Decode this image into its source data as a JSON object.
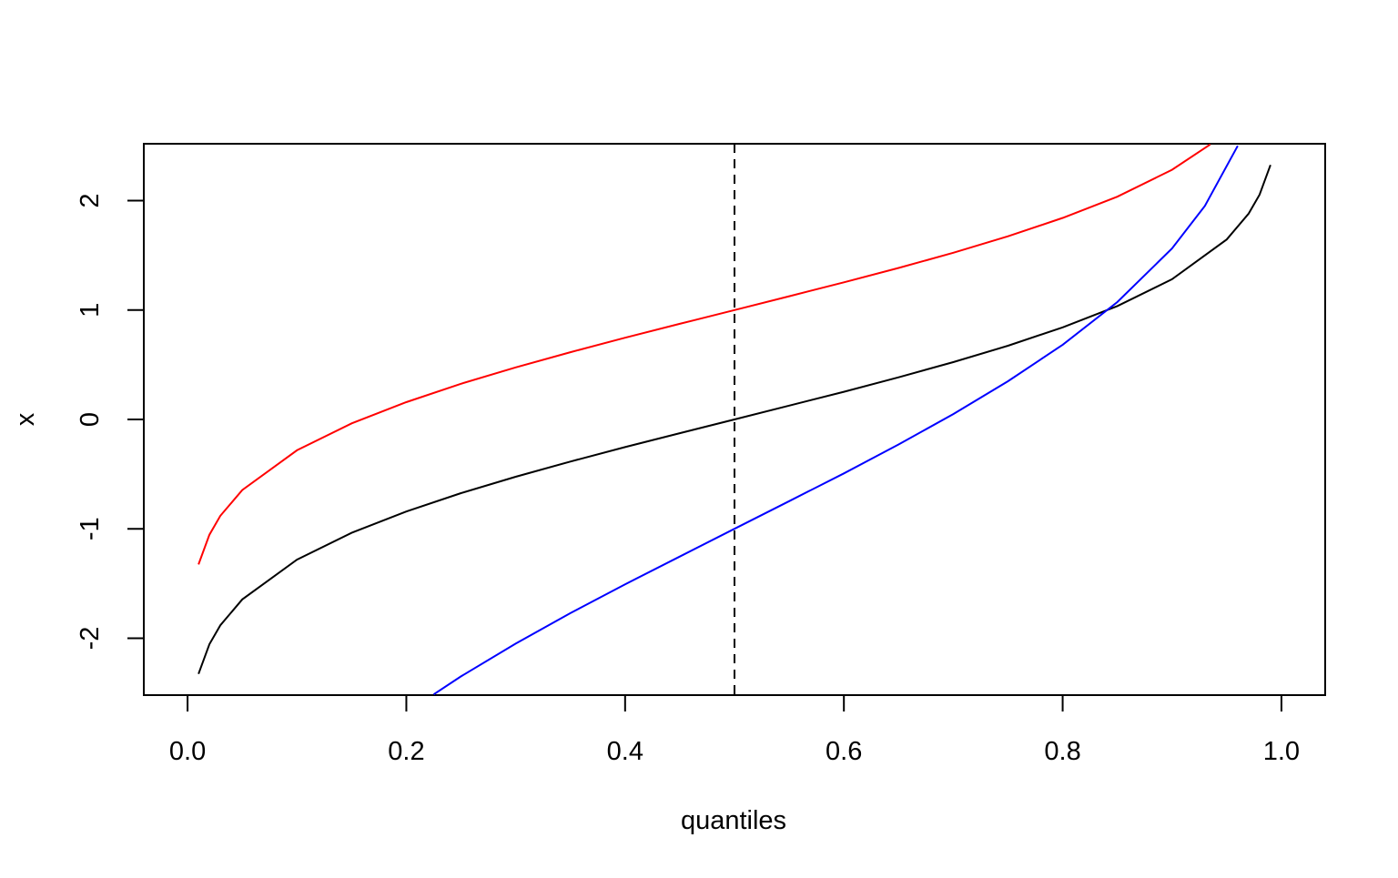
{
  "chart_data": {
    "type": "line",
    "title": "",
    "xlabel": "quantiles",
    "ylabel": "x",
    "xlim": [
      -0.04,
      1.04
    ],
    "ylim": [
      -2.52,
      2.52
    ],
    "x_ticks": [
      0.0,
      0.2,
      0.4,
      0.6,
      0.8,
      1.0
    ],
    "x_tick_labels": [
      "0.0",
      "0.2",
      "0.4",
      "0.6",
      "0.8",
      "1.0"
    ],
    "y_ticks": [
      -2,
      -1,
      0,
      1,
      2
    ],
    "y_tick_labels": [
      "-2",
      "-1",
      "0",
      "1",
      "2"
    ],
    "vline": {
      "x": 0.5,
      "style": "dashed",
      "color": "#000000"
    },
    "series": [
      {
        "color": "#000000",
        "x": [
          0.01,
          0.02,
          0.03,
          0.05,
          0.1,
          0.15,
          0.2,
          0.25,
          0.3,
          0.35,
          0.4,
          0.45,
          0.5,
          0.55,
          0.6,
          0.65,
          0.7,
          0.75,
          0.8,
          0.85,
          0.9,
          0.95,
          0.97,
          0.98,
          0.99
        ],
        "y": [
          -2.326,
          -2.054,
          -1.881,
          -1.645,
          -1.282,
          -1.036,
          -0.842,
          -0.674,
          -0.524,
          -0.385,
          -0.253,
          -0.126,
          0.0,
          0.126,
          0.253,
          0.385,
          0.524,
          0.674,
          0.842,
          1.036,
          1.282,
          1.645,
          1.881,
          2.054,
          2.326
        ]
      },
      {
        "color": "#ff0000",
        "x": [
          0.01,
          0.02,
          0.03,
          0.05,
          0.1,
          0.15,
          0.2,
          0.25,
          0.3,
          0.35,
          0.4,
          0.45,
          0.5,
          0.55,
          0.6,
          0.65,
          0.7,
          0.75,
          0.8,
          0.85,
          0.9,
          0.935
        ],
        "y": [
          -1.326,
          -1.054,
          -0.881,
          -0.645,
          -0.282,
          -0.036,
          0.158,
          0.326,
          0.476,
          0.615,
          0.747,
          0.874,
          1.0,
          1.126,
          1.253,
          1.385,
          1.524,
          1.674,
          1.842,
          2.036,
          2.282,
          2.514
        ]
      },
      {
        "color": "#0000ff",
        "x": [
          0.225,
          0.25,
          0.3,
          0.35,
          0.4,
          0.45,
          0.5,
          0.55,
          0.6,
          0.65,
          0.7,
          0.75,
          0.8,
          0.85,
          0.9,
          0.93,
          0.96
        ],
        "y": [
          -2.513,
          -2.349,
          -2.049,
          -1.771,
          -1.507,
          -1.253,
          -1.0,
          -0.747,
          -0.493,
          -0.229,
          0.049,
          0.349,
          0.683,
          1.073,
          1.563,
          1.952,
          2.501
        ]
      }
    ]
  }
}
